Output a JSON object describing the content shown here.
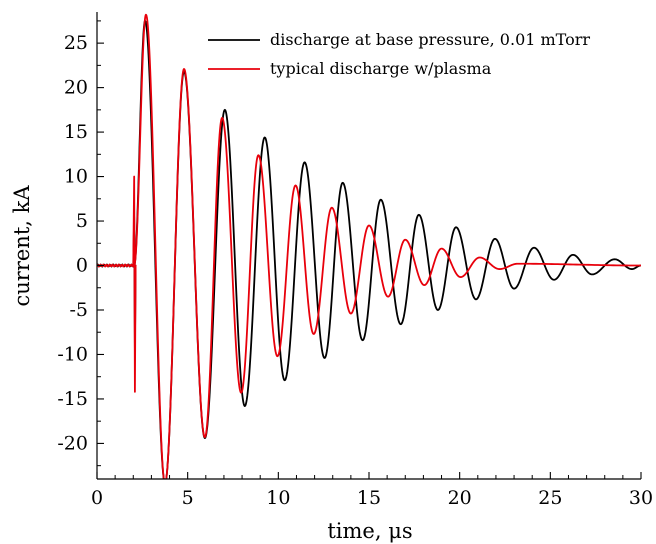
{
  "chart_data": {
    "type": "line",
    "title": "",
    "xlabel": "time, μs",
    "ylabel": "current, kA",
    "xlim": [
      0,
      30
    ],
    "ylim": [
      -24,
      28.5
    ],
    "xticks": [
      0,
      5,
      10,
      15,
      20,
      25,
      30
    ],
    "yticks": [
      -20,
      -15,
      -10,
      -5,
      0,
      5,
      10,
      15,
      20,
      25
    ],
    "grid": false,
    "legend_position": "top-right",
    "series": [
      {
        "name": "discharge at base pressure, 0.01 mTorr",
        "color": "#000000",
        "peaks": [
          [
            2.05,
            0.0
          ],
          [
            2.65,
            27.5
          ],
          [
            3.75,
            -24.5
          ],
          [
            4.8,
            21.8
          ],
          [
            5.95,
            -19.4
          ],
          [
            7.05,
            17.5
          ],
          [
            8.15,
            -15.8
          ],
          [
            9.25,
            14.4
          ],
          [
            10.35,
            -12.9
          ],
          [
            11.45,
            11.6
          ],
          [
            12.55,
            -10.4
          ],
          [
            13.55,
            9.3
          ],
          [
            14.65,
            -8.4
          ],
          [
            15.65,
            7.4
          ],
          [
            16.75,
            -6.6
          ],
          [
            17.75,
            5.7
          ],
          [
            18.8,
            -5.0
          ],
          [
            19.8,
            4.3
          ],
          [
            20.9,
            -3.8
          ],
          [
            21.95,
            3.0
          ],
          [
            23.0,
            -2.6
          ],
          [
            24.1,
            2.0
          ],
          [
            25.2,
            -1.6
          ],
          [
            26.25,
            1.2
          ],
          [
            27.3,
            -1.0
          ],
          [
            28.55,
            0.7
          ],
          [
            29.5,
            -0.4
          ],
          [
            30.0,
            0.0
          ]
        ]
      },
      {
        "name": "typical discharge w/plasma",
        "color": "#e8000b",
        "peaks": [
          [
            2.05,
            0.0
          ],
          [
            2.7,
            28.2
          ],
          [
            3.75,
            -24.5
          ],
          [
            4.8,
            22.1
          ],
          [
            5.95,
            -19.3
          ],
          [
            6.9,
            16.6
          ],
          [
            7.95,
            -14.3
          ],
          [
            8.9,
            12.4
          ],
          [
            9.95,
            -10.2
          ],
          [
            10.95,
            9.0
          ],
          [
            11.95,
            -7.7
          ],
          [
            12.95,
            6.5
          ],
          [
            14.0,
            -5.4
          ],
          [
            15.0,
            4.5
          ],
          [
            16.05,
            -3.5
          ],
          [
            17.0,
            2.9
          ],
          [
            18.05,
            -2.2
          ],
          [
            19.0,
            1.9
          ],
          [
            20.05,
            -1.3
          ],
          [
            21.1,
            0.9
          ],
          [
            22.2,
            -0.4
          ],
          [
            23.2,
            0.2
          ],
          [
            30.0,
            0.0
          ]
        ]
      }
    ]
  }
}
